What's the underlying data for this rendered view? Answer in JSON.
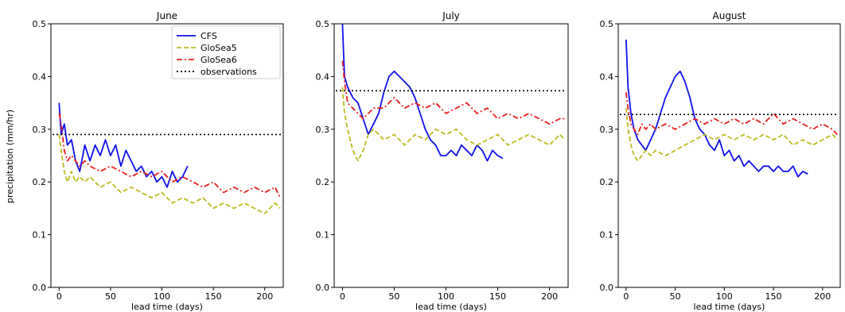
{
  "figure": {
    "ylabel": "precipitation (mm/hr)"
  },
  "legend": {
    "placement": "top-right of first panel",
    "entries": [
      {
        "key": "CFS",
        "label": "CFS",
        "color": "#1010ee",
        "style": "solid"
      },
      {
        "key": "GloSea5",
        "label": "GloSea5",
        "color": "#bcbc20",
        "style": "dashed"
      },
      {
        "key": "GloSea6",
        "label": "GloSea6",
        "color": "#ee1c1c",
        "style": "dashdot"
      },
      {
        "key": "observations",
        "label": "observations",
        "color": "#000000",
        "style": "dotted"
      }
    ]
  },
  "chart_data": [
    {
      "type": "line",
      "title": "June",
      "xlabel": "lead time (days)",
      "ylabel": "precipitation (mm/hr)",
      "xlim": [
        -8,
        218
      ],
      "ylim": [
        0,
        0.5
      ],
      "xticks": [
        0,
        50,
        100,
        150,
        200
      ],
      "yticks": [
        0.0,
        0.1,
        0.2,
        0.3,
        0.4,
        0.5
      ],
      "grid": false,
      "legend": true,
      "observations": 0.29,
      "series": [
        {
          "name": "CFS",
          "x": [
            0,
            2,
            5,
            8,
            12,
            16,
            20,
            25,
            30,
            35,
            40,
            45,
            50,
            55,
            60,
            65,
            70,
            75,
            80,
            85,
            90,
            95,
            100,
            105,
            110,
            115,
            120,
            125
          ],
          "values": [
            0.35,
            0.29,
            0.31,
            0.27,
            0.28,
            0.24,
            0.22,
            0.27,
            0.24,
            0.27,
            0.25,
            0.28,
            0.25,
            0.27,
            0.23,
            0.26,
            0.24,
            0.22,
            0.23,
            0.21,
            0.22,
            0.2,
            0.21,
            0.19,
            0.22,
            0.2,
            0.21,
            0.23
          ]
        },
        {
          "name": "GloSea5",
          "x": [
            0,
            2,
            5,
            8,
            12,
            16,
            20,
            25,
            30,
            40,
            50,
            60,
            70,
            80,
            90,
            100,
            110,
            120,
            130,
            140,
            150,
            160,
            170,
            180,
            190,
            200,
            210,
            215
          ],
          "values": [
            0.29,
            0.26,
            0.22,
            0.2,
            0.22,
            0.2,
            0.21,
            0.2,
            0.21,
            0.19,
            0.2,
            0.18,
            0.19,
            0.18,
            0.17,
            0.18,
            0.16,
            0.17,
            0.16,
            0.17,
            0.15,
            0.16,
            0.15,
            0.16,
            0.15,
            0.14,
            0.16,
            0.15
          ]
        },
        {
          "name": "GloSea6",
          "x": [
            0,
            2,
            5,
            8,
            12,
            16,
            20,
            25,
            30,
            40,
            50,
            60,
            70,
            80,
            90,
            100,
            110,
            120,
            130,
            140,
            150,
            160,
            170,
            180,
            190,
            200,
            210,
            215
          ],
          "values": [
            0.33,
            0.31,
            0.26,
            0.24,
            0.25,
            0.24,
            0.23,
            0.24,
            0.23,
            0.22,
            0.23,
            0.22,
            0.21,
            0.22,
            0.21,
            0.22,
            0.2,
            0.21,
            0.2,
            0.19,
            0.2,
            0.18,
            0.19,
            0.18,
            0.19,
            0.18,
            0.19,
            0.17
          ]
        }
      ]
    },
    {
      "type": "line",
      "title": "July",
      "xlabel": "lead time (days)",
      "xlim": [
        -8,
        218
      ],
      "ylim": [
        0,
        0.5
      ],
      "xticks": [
        0,
        50,
        100,
        150,
        200
      ],
      "yticks": [
        0.0,
        0.1,
        0.2,
        0.3,
        0.4,
        0.5
      ],
      "grid": false,
      "legend": false,
      "observations": 0.373,
      "series": [
        {
          "name": "CFS",
          "x": [
            0,
            2,
            5,
            10,
            15,
            20,
            25,
            30,
            35,
            40,
            45,
            50,
            55,
            60,
            65,
            70,
            75,
            80,
            85,
            90,
            95,
            100,
            105,
            110,
            115,
            120,
            125,
            130,
            135,
            140,
            145,
            150,
            155
          ],
          "values": [
            0.5,
            0.4,
            0.38,
            0.36,
            0.35,
            0.32,
            0.29,
            0.31,
            0.33,
            0.37,
            0.4,
            0.41,
            0.4,
            0.39,
            0.38,
            0.36,
            0.33,
            0.3,
            0.28,
            0.27,
            0.25,
            0.25,
            0.26,
            0.25,
            0.27,
            0.26,
            0.25,
            0.27,
            0.26,
            0.24,
            0.26,
            0.25,
            0.245
          ]
        },
        {
          "name": "GloSea5",
          "x": [
            0,
            2,
            5,
            10,
            15,
            20,
            25,
            30,
            40,
            50,
            60,
            70,
            80,
            90,
            100,
            110,
            120,
            130,
            140,
            150,
            160,
            170,
            180,
            190,
            200,
            210,
            215
          ],
          "values": [
            0.38,
            0.33,
            0.3,
            0.26,
            0.24,
            0.26,
            0.29,
            0.3,
            0.28,
            0.29,
            0.27,
            0.29,
            0.28,
            0.3,
            0.29,
            0.3,
            0.28,
            0.27,
            0.28,
            0.29,
            0.27,
            0.28,
            0.29,
            0.28,
            0.27,
            0.29,
            0.28
          ]
        },
        {
          "name": "GloSea6",
          "x": [
            0,
            2,
            5,
            10,
            15,
            20,
            25,
            30,
            40,
            50,
            60,
            70,
            80,
            90,
            100,
            110,
            120,
            130,
            140,
            150,
            160,
            170,
            180,
            190,
            200,
            210,
            215
          ],
          "values": [
            0.43,
            0.39,
            0.35,
            0.34,
            0.33,
            0.32,
            0.33,
            0.34,
            0.34,
            0.36,
            0.34,
            0.35,
            0.34,
            0.35,
            0.33,
            0.34,
            0.35,
            0.33,
            0.34,
            0.32,
            0.33,
            0.32,
            0.33,
            0.32,
            0.31,
            0.32,
            0.32
          ]
        }
      ]
    },
    {
      "type": "line",
      "title": "August",
      "xlabel": "lead time (days)",
      "xlim": [
        -8,
        218
      ],
      "ylim": [
        0,
        0.5
      ],
      "xticks": [
        0,
        50,
        100,
        150,
        200
      ],
      "yticks": [
        0.0,
        0.1,
        0.2,
        0.3,
        0.4,
        0.5
      ],
      "grid": false,
      "legend": false,
      "observations": 0.328,
      "series": [
        {
          "name": "CFS",
          "x": [
            0,
            2,
            5,
            8,
            12,
            16,
            20,
            25,
            30,
            35,
            40,
            45,
            50,
            55,
            60,
            65,
            70,
            75,
            80,
            85,
            90,
            95,
            100,
            105,
            110,
            115,
            120,
            125,
            130,
            135,
            140,
            145,
            150,
            155,
            160,
            165,
            170,
            175,
            180,
            185
          ],
          "values": [
            0.47,
            0.38,
            0.33,
            0.3,
            0.28,
            0.27,
            0.26,
            0.28,
            0.3,
            0.33,
            0.36,
            0.38,
            0.4,
            0.41,
            0.39,
            0.36,
            0.32,
            0.3,
            0.29,
            0.27,
            0.26,
            0.28,
            0.25,
            0.26,
            0.24,
            0.25,
            0.23,
            0.24,
            0.23,
            0.22,
            0.23,
            0.23,
            0.22,
            0.23,
            0.22,
            0.22,
            0.23,
            0.21,
            0.22,
            0.215
          ]
        },
        {
          "name": "GloSea5",
          "x": [
            0,
            2,
            5,
            8,
            12,
            16,
            20,
            25,
            30,
            40,
            50,
            60,
            70,
            80,
            90,
            100,
            110,
            120,
            130,
            140,
            150,
            160,
            170,
            180,
            190,
            200,
            210,
            215
          ],
          "values": [
            0.34,
            0.3,
            0.27,
            0.25,
            0.24,
            0.25,
            0.26,
            0.25,
            0.26,
            0.25,
            0.26,
            0.27,
            0.28,
            0.29,
            0.28,
            0.29,
            0.28,
            0.29,
            0.28,
            0.29,
            0.28,
            0.29,
            0.27,
            0.28,
            0.27,
            0.28,
            0.29,
            0.28
          ]
        },
        {
          "name": "GloSea6",
          "x": [
            0,
            2,
            5,
            8,
            12,
            16,
            20,
            25,
            30,
            40,
            50,
            60,
            70,
            80,
            90,
            100,
            110,
            120,
            130,
            140,
            150,
            160,
            170,
            180,
            190,
            200,
            210,
            215
          ],
          "values": [
            0.37,
            0.34,
            0.31,
            0.3,
            0.29,
            0.31,
            0.3,
            0.31,
            0.3,
            0.31,
            0.3,
            0.31,
            0.32,
            0.31,
            0.32,
            0.31,
            0.32,
            0.31,
            0.32,
            0.31,
            0.33,
            0.31,
            0.32,
            0.31,
            0.3,
            0.31,
            0.3,
            0.29
          ]
        }
      ]
    }
  ]
}
